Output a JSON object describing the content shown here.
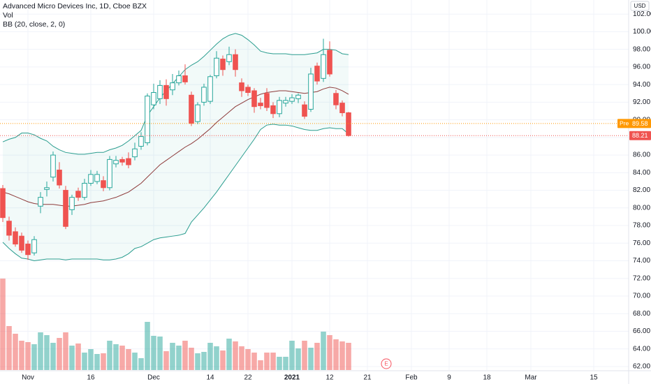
{
  "chart_data": {
    "type": "candlestick",
    "title": "Advanced Micro Devices Inc, 1D, Cboe BZX",
    "currency": "USD",
    "categories": [
      null,
      null,
      null,
      null,
      "Nov",
      null,
      null,
      null,
      null,
      null,
      null,
      null,
      null,
      null,
      "16",
      null,
      null,
      null,
      null,
      null,
      null,
      null,
      null,
      null,
      "Dec",
      null,
      null,
      null,
      null,
      null,
      null,
      null,
      null,
      "14",
      null,
      null,
      null,
      null,
      null,
      "22",
      null,
      null,
      null,
      null,
      null,
      null,
      "2021",
      null,
      null,
      null,
      null,
      null,
      "12",
      null,
      null,
      null,
      null,
      null,
      "21",
      null,
      null,
      null,
      null,
      null,
      null,
      "Feb",
      null,
      null,
      null,
      null,
      null,
      "9",
      null,
      null,
      null,
      null,
      null,
      "18",
      null,
      null,
      null,
      null,
      null,
      null,
      "Mar",
      null,
      null,
      null,
      null,
      null,
      null,
      null,
      null,
      null,
      "15",
      null,
      null,
      null,
      null,
      null
    ],
    "open": [
      82.2,
      78.5,
      77.3,
      76.8,
      75.9,
      74.9,
      80.2,
      82.1,
      83.5,
      84.3,
      82.0,
      79.8,
      81.9,
      81.2,
      82.8,
      83.0,
      83.1,
      82.3,
      85.0,
      85.5,
      85.6,
      85.8,
      87.0,
      87.4,
      91.7,
      92.4,
      93.9,
      93.4,
      94.2,
      95.0,
      92.8,
      89.8,
      92.0,
      92.1,
      95.0,
      96.9,
      96.6,
      97.4,
      94.2,
      93.7,
      93.3,
      91.9,
      93.0,
      91.6,
      90.7,
      91.9,
      92.1,
      92.4,
      91.7,
      91.2,
      96.1,
      94.7,
      97.9,
      93.0,
      91.9,
      90.8,
      null,
      null,
      null,
      null,
      null,
      null,
      null,
      null,
      null,
      null,
      null,
      null,
      null,
      null,
      null,
      null,
      null,
      null,
      null,
      null,
      null,
      null,
      null,
      null,
      null,
      null,
      null,
      null,
      null,
      null,
      null,
      null,
      null,
      null,
      null,
      null,
      null,
      null,
      null,
      null,
      null,
      null,
      null,
      null
    ],
    "high": [
      82.6,
      79.0,
      77.8,
      77.2,
      76.3,
      76.8,
      81.8,
      83.0,
      86.4,
      85.2,
      82.5,
      81.5,
      82.3,
      83.3,
      84.3,
      84.2,
      83.6,
      85.9,
      85.9,
      85.8,
      86.3,
      87.4,
      88.6,
      93.0,
      94.1,
      94.5,
      94.6,
      95.2,
      95.6,
      96.3,
      93.2,
      92.0,
      94.1,
      95.1,
      97.8,
      97.3,
      98.3,
      98.0,
      94.7,
      94.0,
      93.6,
      92.5,
      93.6,
      92.0,
      92.6,
      92.6,
      92.9,
      93.0,
      92.1,
      95.9,
      96.5,
      99.2,
      98.9,
      93.4,
      92.2,
      90.9,
      null,
      null,
      null,
      null,
      null,
      null,
      null,
      null,
      null,
      null,
      null,
      null,
      null,
      null,
      null,
      null,
      null,
      null,
      null,
      null,
      null,
      null,
      null,
      null,
      null,
      null,
      null,
      null,
      null,
      null,
      null,
      null,
      null,
      null,
      null,
      null,
      null,
      null,
      null,
      null,
      null,
      null,
      null,
      null
    ],
    "low": [
      78.4,
      76.3,
      75.6,
      74.9,
      74.1,
      74.6,
      79.4,
      81.3,
      83.0,
      82.2,
      77.6,
      79.2,
      80.8,
      80.9,
      82.5,
      82.7,
      81.9,
      82.0,
      84.6,
      84.8,
      84.5,
      85.4,
      86.6,
      87.1,
      91.2,
      91.8,
      91.6,
      92.8,
      93.9,
      94.0,
      89.3,
      89.5,
      91.6,
      91.8,
      94.7,
      95.0,
      96.2,
      94.9,
      92.6,
      92.7,
      90.8,
      91.2,
      91.0,
      90.2,
      90.3,
      91.5,
      91.8,
      91.9,
      90.1,
      90.9,
      94.0,
      94.3,
      94.9,
      91.2,
      90.4,
      88.1,
      null,
      null,
      null,
      null,
      null,
      null,
      null,
      null,
      null,
      null,
      null,
      null,
      null,
      null,
      null,
      null,
      null,
      null,
      null,
      null,
      null,
      null,
      null,
      null,
      null,
      null,
      null,
      null,
      null,
      null,
      null,
      null,
      null,
      null,
      null,
      null,
      null,
      null,
      null,
      null,
      null,
      null,
      null,
      null
    ],
    "close": [
      78.9,
      76.9,
      75.9,
      75.2,
      74.7,
      76.4,
      81.2,
      82.3,
      86.0,
      82.6,
      77.9,
      81.2,
      81.2,
      82.8,
      83.8,
      83.8,
      82.3,
      85.5,
      85.4,
      85.2,
      84.9,
      86.7,
      88.1,
      92.7,
      93.1,
      93.9,
      92.4,
      94.2,
      95.0,
      94.3,
      89.6,
      91.7,
      93.7,
      94.9,
      97.0,
      95.7,
      97.4,
      95.7,
      93.3,
      93.1,
      91.5,
      91.6,
      91.4,
      90.7,
      92.2,
      92.2,
      92.5,
      92.8,
      90.4,
      95.2,
      94.4,
      97.4,
      95.2,
      91.7,
      90.8,
      88.21,
      null,
      null,
      null,
      null,
      null,
      null,
      null,
      null,
      null,
      null,
      null,
      null,
      null,
      null,
      null,
      null,
      null,
      null,
      null,
      null,
      null,
      null,
      null,
      null,
      null,
      null,
      null,
      null,
      null,
      null,
      null,
      null,
      null,
      null,
      null,
      null,
      null,
      null,
      null,
      null,
      null,
      null,
      null,
      null
    ],
    "up_color": "#26a69a",
    "down_color": "#ef5350",
    "volume": {
      "name": "Vol",
      "ylim": [
        0,
        120
      ],
      "values": [
        78.6,
        37.8,
        31.2,
        25.2,
        24.0,
        22.2,
        32.4,
        30.0,
        23.4,
        27.6,
        32.4,
        21.0,
        22.8,
        15.0,
        18.0,
        13.8,
        14.4,
        25.2,
        22.2,
        21.0,
        18.0,
        15.0,
        10.2,
        41.4,
        29.4,
        28.8,
        16.2,
        23.4,
        21.0,
        25.2,
        19.2,
        14.4,
        15.6,
        23.4,
        20.4,
        16.8,
        27.0,
        24.6,
        20.4,
        18.0,
        15.0,
        8.4,
        15.0,
        15.0,
        11.4,
        11.4,
        25.2,
        18.6,
        25.2,
        19.2,
        23.4,
        33.0,
        30.0,
        26.4,
        24.6,
        23.4,
        null,
        null,
        null,
        null,
        null,
        null,
        null,
        null,
        null,
        null,
        null,
        null,
        null,
        null,
        null,
        null,
        null,
        null,
        null,
        null,
        null,
        null,
        null,
        null,
        null,
        null,
        null,
        null,
        null,
        null,
        null,
        null,
        null,
        null,
        null,
        null,
        null,
        null,
        null,
        null,
        null,
        null,
        null,
        null
      ]
    },
    "bollinger": {
      "name": "BB (20, close, 2, 0)",
      "band_color": "#2a9d8f",
      "basis_color": "#8e3b3b",
      "fill": "#26a69a",
      "upper": [
        87.5,
        87.8,
        88.0,
        88.5,
        88.5,
        88.3,
        87.9,
        87.6,
        87.0,
        86.6,
        86.3,
        86.2,
        86.1,
        86.1,
        86.2,
        86.3,
        86.3,
        86.6,
        86.8,
        87.1,
        87.6,
        88.2,
        88.8,
        90.5,
        91.5,
        92.5,
        93.3,
        94.1,
        94.9,
        95.7,
        96.2,
        96.6,
        97.2,
        97.9,
        98.6,
        99.2,
        99.6,
        99.8,
        99.6,
        99.1,
        98.5,
        97.8,
        97.6,
        97.5,
        97.5,
        97.5,
        97.4,
        97.4,
        97.4,
        97.5,
        97.6,
        98.0,
        98.0,
        97.9,
        97.5,
        97.4,
        null,
        null,
        null,
        null,
        null,
        null,
        null,
        null,
        null,
        null,
        null,
        null,
        null,
        null,
        null,
        null,
        null,
        null,
        null,
        null,
        null,
        null,
        null,
        null,
        null,
        null,
        null,
        null,
        null,
        null,
        null,
        null,
        null,
        null,
        null,
        null,
        null,
        null,
        null,
        null,
        null,
        null,
        null,
        null
      ],
      "basis": [
        81.8,
        81.6,
        81.3,
        81.0,
        80.7,
        80.5,
        80.4,
        80.4,
        80.4,
        80.3,
        80.2,
        80.2,
        80.3,
        80.4,
        80.6,
        80.7,
        80.8,
        81.0,
        81.2,
        81.5,
        81.8,
        82.3,
        82.8,
        83.5,
        84.2,
        84.9,
        85.4,
        85.9,
        86.4,
        86.9,
        87.3,
        87.8,
        88.4,
        89.0,
        89.7,
        90.3,
        90.9,
        91.5,
        91.9,
        92.3,
        92.6,
        92.9,
        93.1,
        93.2,
        93.3,
        93.3,
        93.2,
        93.1,
        93.0,
        93.1,
        93.2,
        93.5,
        93.7,
        93.6,
        93.3,
        92.9,
        null,
        null,
        null,
        null,
        null,
        null,
        null,
        null,
        null,
        null,
        null,
        null,
        null,
        null,
        null,
        null,
        null,
        null,
        null,
        null,
        null,
        null,
        null,
        null,
        null,
        null,
        null,
        null,
        null,
        null,
        null,
        null,
        null,
        null,
        null,
        null,
        null,
        null,
        null,
        null,
        null,
        null,
        null,
        null
      ],
      "lower": [
        76.1,
        75.4,
        74.8,
        74.3,
        74.2,
        74.0,
        74.1,
        74.2,
        74.2,
        74.2,
        74.1,
        74.2,
        74.2,
        74.2,
        74.2,
        74.2,
        74.1,
        74.1,
        74.2,
        74.4,
        74.8,
        75.4,
        75.6,
        76.0,
        76.4,
        76.6,
        76.7,
        76.8,
        76.9,
        77.1,
        78.4,
        79.2,
        80.0,
        80.9,
        81.8,
        82.8,
        83.8,
        84.8,
        85.8,
        86.8,
        87.8,
        88.9,
        89.4,
        89.5,
        89.4,
        89.4,
        89.3,
        89.1,
        88.9,
        88.8,
        88.8,
        89.0,
        89.1,
        89.0,
        89.0,
        88.4,
        null,
        null,
        null,
        null,
        null,
        null,
        null,
        null,
        null,
        null,
        null,
        null,
        null,
        null,
        null,
        null,
        null,
        null,
        null,
        null,
        null,
        null,
        null,
        null,
        null,
        null,
        null,
        null,
        null,
        null,
        null,
        null,
        null,
        null,
        null,
        null,
        null,
        null,
        null,
        null,
        null,
        null,
        null,
        null
      ]
    },
    "pre_market": {
      "label": "Pre",
      "value": 89.58,
      "color": "#ff9800"
    },
    "events": [
      null,
      null,
      null,
      null,
      null,
      null,
      null,
      null,
      null,
      null,
      null,
      null,
      null,
      null,
      null,
      null,
      null,
      null,
      null,
      null,
      null,
      null,
      null,
      null,
      null,
      null,
      null,
      null,
      null,
      null,
      null,
      null,
      null,
      null,
      null,
      null,
      null,
      null,
      null,
      null,
      null,
      null,
      null,
      null,
      null,
      null,
      null,
      null,
      null,
      null,
      null,
      null,
      null,
      null,
      null,
      null,
      null,
      null,
      null,
      null,
      null,
      "E",
      null,
      null,
      null,
      null,
      null,
      null,
      null,
      null,
      null,
      null,
      null,
      null,
      null,
      null,
      null,
      null,
      null,
      null,
      null,
      null,
      null,
      null,
      null,
      null,
      null,
      null,
      null,
      null,
      null,
      null,
      null,
      null,
      null,
      null,
      null,
      null,
      null,
      null
    ],
    "ylim": [
      61.6,
      103.6
    ],
    "yticks": [
      {
        "value": 62,
        "label": "62.00"
      },
      {
        "value": 64,
        "label": "64.00"
      },
      {
        "value": 66,
        "label": "66.00"
      },
      {
        "value": 68,
        "label": "68.00"
      },
      {
        "value": 70,
        "label": "70.00"
      },
      {
        "value": 72,
        "label": "72.00"
      },
      {
        "value": 74,
        "label": "74.00"
      },
      {
        "value": 76,
        "label": "76.00"
      },
      {
        "value": 78,
        "label": "78.00"
      },
      {
        "value": 80,
        "label": "80.00"
      },
      {
        "value": 82,
        "label": "82.00"
      },
      {
        "value": 84,
        "label": "84.00"
      },
      {
        "value": 86,
        "label": "86.00"
      },
      {
        "value": 88,
        "label": "88.00"
      },
      {
        "value": 90,
        "label": "90.00"
      },
      {
        "value": 92,
        "label": "92.00"
      },
      {
        "value": 94,
        "label": "94.00"
      },
      {
        "value": 96,
        "label": "96.00"
      },
      {
        "value": 98,
        "label": "98.00"
      },
      {
        "value": 100,
        "label": "100.00"
      },
      {
        "value": 102,
        "label": "102.00"
      }
    ],
    "grid": true
  }
}
